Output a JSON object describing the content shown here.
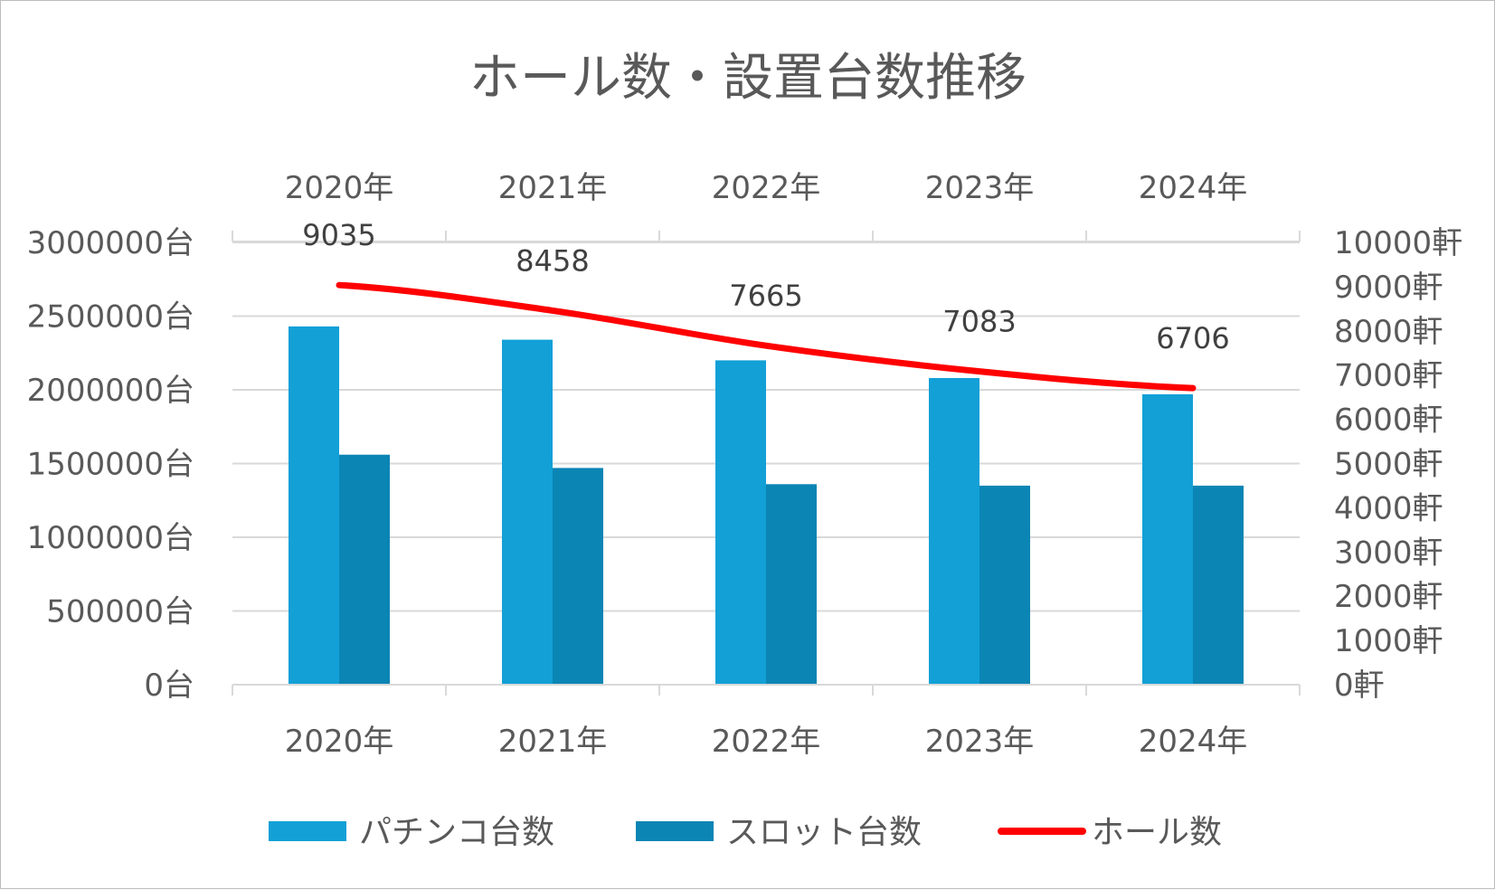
{
  "chart_data": {
    "type": "bar",
    "title": "ホール数・設置台数推移",
    "categories": [
      "2020年",
      "2021年",
      "2022年",
      "2023年",
      "2024年"
    ],
    "series": [
      {
        "name": "パチンコ台数",
        "type": "bar",
        "axis": "left",
        "color": "#12a0d7",
        "values": [
          2430000,
          2340000,
          2200000,
          2080000,
          1970000
        ]
      },
      {
        "name": "スロット台数",
        "type": "bar",
        "axis": "left",
        "color": "#0b85b4",
        "values": [
          1560000,
          1470000,
          1360000,
          1350000,
          1350000
        ]
      },
      {
        "name": "ホール数",
        "type": "line",
        "axis": "right",
        "color": "#ff0000",
        "values": [
          9035,
          8458,
          7665,
          7083,
          6706
        ],
        "data_labels": [
          "9035",
          "8458",
          "7665",
          "7083",
          "6706"
        ]
      }
    ],
    "y_left": {
      "range": [
        0,
        3000000
      ],
      "step": 500000,
      "tick_labels": [
        "0台",
        "500000台",
        "1000000台",
        "1500000台",
        "2000000台",
        "2500000台",
        "3000000台"
      ]
    },
    "y_right": {
      "range": [
        0,
        10000
      ],
      "step": 1000,
      "tick_labels": [
        "0軒",
        "1000軒",
        "2000軒",
        "3000軒",
        "4000軒",
        "5000軒",
        "6000軒",
        "7000軒",
        "8000軒",
        "9000軒",
        "10000軒"
      ]
    },
    "grid": true,
    "legend_position": "bottom"
  }
}
